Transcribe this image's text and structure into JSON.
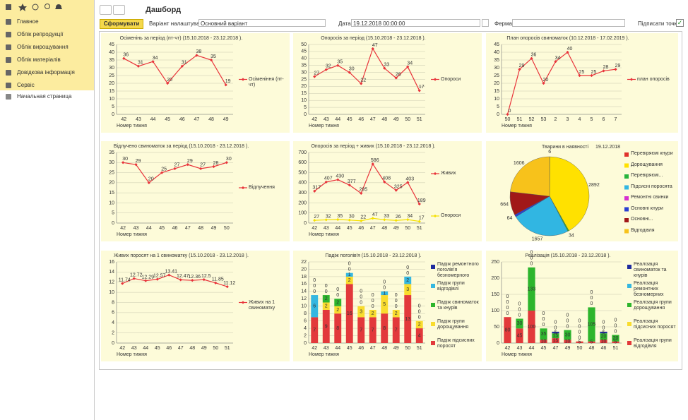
{
  "sidebar": {
    "sections": [
      "Главное",
      "Облік репродукції",
      "Облік вирощування",
      "Облік матеріалів",
      "Довідкова інформація",
      "Сервіс"
    ],
    "home": "Начальная страница"
  },
  "page_title": "Дашборд",
  "toolbar": {
    "generate": "Сформувати",
    "variant_label": "Варіант налаштувань:",
    "variant": "Основний варіант",
    "date_label": "Дата:",
    "date": "19.12.2018 00:00:00",
    "farm_label": "Ферма:",
    "sign_points": "Підписати точки:"
  },
  "chart_data": [
    {
      "type": "line",
      "title": "Осіменінь за період (пт-чт) (15.10.2018 - 23.12.2018 ).",
      "x_label": "Номер тижня",
      "categories": [
        "42",
        "43",
        "44",
        "45",
        "46",
        "47",
        "48",
        "49"
      ],
      "series": [
        {
          "name": "Осіменіння (пт-чт)",
          "color": "#e8333a",
          "values": [
            36,
            31,
            34,
            20,
            31,
            38,
            35,
            19
          ]
        }
      ],
      "ylim": [
        0,
        45
      ],
      "yticks": [
        0,
        5,
        10,
        15,
        20,
        25,
        30,
        35,
        40,
        45
      ],
      "grid": true
    },
    {
      "type": "line",
      "title": "Опоросів за період (15.10.2018 - 23.12.2018 ).",
      "x_label": "Номер тижня",
      "categories": [
        "42",
        "43",
        "44",
        "45",
        "46",
        "47",
        "48",
        "49",
        "50",
        "51"
      ],
      "series": [
        {
          "name": "Опороси",
          "color": "#e8333a",
          "values": [
            27,
            32,
            35,
            30,
            22,
            47,
            33,
            26,
            34,
            17
          ]
        }
      ],
      "ylim": [
        0,
        50
      ],
      "yticks": [
        0,
        5,
        10,
        15,
        20,
        25,
        30,
        35,
        40,
        45,
        50
      ],
      "grid": true
    },
    {
      "type": "line",
      "title": "План опоросів свиноматок (10.12.2018 - 17.02.2019 ).",
      "x_label": "Номер тижня",
      "categories": [
        "50",
        "51",
        "52",
        "53",
        "2",
        "3",
        "4",
        "5",
        "6",
        "7"
      ],
      "series": [
        {
          "name": "план опоросів",
          "color": "#e8333a",
          "values": [
            0,
            29,
            36,
            20,
            34,
            40,
            25,
            25,
            28,
            29
          ]
        }
      ],
      "ylim": [
        0,
        45
      ],
      "yticks": [
        0,
        5,
        10,
        15,
        20,
        25,
        30,
        35,
        40,
        45
      ],
      "grid": true
    },
    {
      "type": "line",
      "title": "Відлучено свиноматок за період (15.10.2018 - 23.12.2018 ).",
      "x_label": "Номер тижня",
      "categories": [
        "42",
        "43",
        "44",
        "45",
        "46",
        "47",
        "48",
        "49",
        "50"
      ],
      "series": [
        {
          "name": "Відлучення",
          "color": "#e8333a",
          "values": [
            30,
            29,
            20,
            25,
            27,
            29,
            27,
            28,
            30
          ]
        }
      ],
      "ylim": [
        0,
        35
      ],
      "yticks": [
        0,
        5,
        10,
        15,
        20,
        25,
        30,
        35
      ],
      "grid": true
    },
    {
      "type": "line",
      "title": "Опоросів за період + живих (15.10.2018 - 23.12.2018 ).",
      "x_label": "Номер тижня",
      "categories": [
        "42",
        "43",
        "44",
        "45",
        "46",
        "47",
        "48",
        "49",
        "50",
        "51"
      ],
      "series": [
        {
          "name": "Живих",
          "color": "#e8333a",
          "values": [
            317,
            407,
            430,
            377,
            295,
            586,
            408,
            325,
            403,
            189
          ]
        },
        {
          "name": "Опороси",
          "color": "#f5e000",
          "values": [
            27,
            32,
            35,
            30,
            22,
            47,
            33,
            26,
            34,
            17
          ]
        }
      ],
      "ylim": [
        0,
        700
      ],
      "yticks": [
        0,
        100,
        200,
        300,
        400,
        500,
        600,
        700
      ],
      "grid": true
    },
    {
      "type": "pie",
      "title": "Тварини в наявності",
      "date": "19.12.2018",
      "categories": [
        "Перевіряємі кнури",
        "Дорощування",
        "Перевіряємі...",
        "Підсисні поросята",
        "Ремонтні свинки",
        "Основні кнури",
        "Основні...",
        "Відгодівля"
      ],
      "colors": [
        "#e0322c",
        "#ffe100",
        "#27b43c",
        "#31b6e2",
        "#d62fd0",
        "#2a3fd1",
        "#a11818",
        "#f7c21b"
      ],
      "values": [
        6,
        2892,
        34,
        1657,
        null,
        64,
        664,
        1606
      ]
    },
    {
      "type": "line",
      "title": "Живих поросят на 1 свиноматку (15.10.2018 - 23.12.2018 ).",
      "x_label": "Номер тижня",
      "categories": [
        "42",
        "43",
        "44",
        "45",
        "46",
        "47",
        "48",
        "49",
        "50",
        "51"
      ],
      "series": [
        {
          "name": "Живих на 1 свиноматку",
          "color": "#e8333a",
          "values": [
            11.74,
            12.72,
            12.29,
            12.57,
            13.41,
            12.47,
            12.36,
            12.5,
            11.85,
            11.12
          ]
        }
      ],
      "ylim": [
        0,
        16
      ],
      "yticks": [
        0,
        2,
        4,
        6,
        8,
        10,
        12,
        14,
        16
      ],
      "grid": true
    },
    {
      "type": "stacked_bar",
      "title": "Падіж поголів'я (15.10.2018 - 23.12.2018 ).",
      "x_label": "Номер тижня",
      "categories": [
        "42",
        "43",
        "44",
        "45",
        "46",
        "47",
        "48",
        "49",
        "50",
        "51"
      ],
      "series": [
        {
          "name": "Падіж підсисних поросят",
          "color": "#e2393b",
          "values": [
            7,
            9,
            8,
            16,
            7,
            7,
            8,
            7,
            13,
            4
          ]
        },
        {
          "name": "Падіж групи дорощування",
          "color": "#f9dc2e",
          "values": [
            0,
            2,
            2,
            2,
            3,
            2,
            5,
            2,
            3,
            2
          ]
        },
        {
          "name": "Падіж свиноматок та кнурів",
          "color": "#2db52d",
          "values": [
            0,
            2,
            2,
            0,
            0,
            0,
            0,
            0,
            0,
            0
          ]
        },
        {
          "name": "Падіж групи відгодівлі",
          "color": "#35b7e0",
          "values": [
            6,
            0,
            0,
            1,
            0,
            0,
            1,
            0,
            2,
            0
          ]
        },
        {
          "name": "Падіж ремонтного поголів'я безномерного",
          "color": "#1f2b9e",
          "values": [
            0,
            0,
            0,
            0,
            0,
            0,
            0,
            0,
            0,
            0
          ]
        }
      ],
      "ylim": [
        0,
        22
      ],
      "yticks": [
        0,
        2,
        4,
        6,
        8,
        10,
        12,
        14,
        16,
        18,
        20,
        22
      ],
      "grid": true
    },
    {
      "type": "stacked_bar",
      "title": "Реалізація (15.10.2018 - 23.12.2018 ).",
      "x_label": "Номер тижня",
      "categories": [
        "42",
        "43",
        "44",
        "45",
        "47",
        "49",
        "50",
        "48",
        "46",
        "51"
      ],
      "series": [
        {
          "name": "Реалізація групи відгодівля",
          "color": "#e2393b",
          "values": [
            80,
            45,
            100,
            10,
            15,
            10,
            5,
            5,
            10,
            5
          ]
        },
        {
          "name": "Реалізація підсисних поросят",
          "color": "#f9dc2e",
          "values": [
            0,
            0,
            0,
            0,
            0,
            0,
            0,
            0,
            0,
            0
          ]
        },
        {
          "name": "Реалізація групи дорощування",
          "color": "#2db52d",
          "values": [
            0,
            30,
            133,
            35,
            15,
            30,
            0,
            105,
            20,
            20
          ]
        },
        {
          "name": "Реалізація ремонтних безномерних",
          "color": "#35b7e0",
          "values": [
            0,
            0,
            0,
            0,
            0,
            0,
            0,
            0,
            0,
            0
          ]
        },
        {
          "name": "Реалізація свиноматок та кнурів",
          "color": "#1f2b9e",
          "values": [
            0,
            0,
            0,
            0,
            5,
            0,
            0,
            0,
            5,
            0
          ]
        }
      ],
      "ylim": [
        0,
        250
      ],
      "yticks": [
        0,
        50,
        100,
        150,
        200,
        250
      ],
      "grid": true
    }
  ]
}
